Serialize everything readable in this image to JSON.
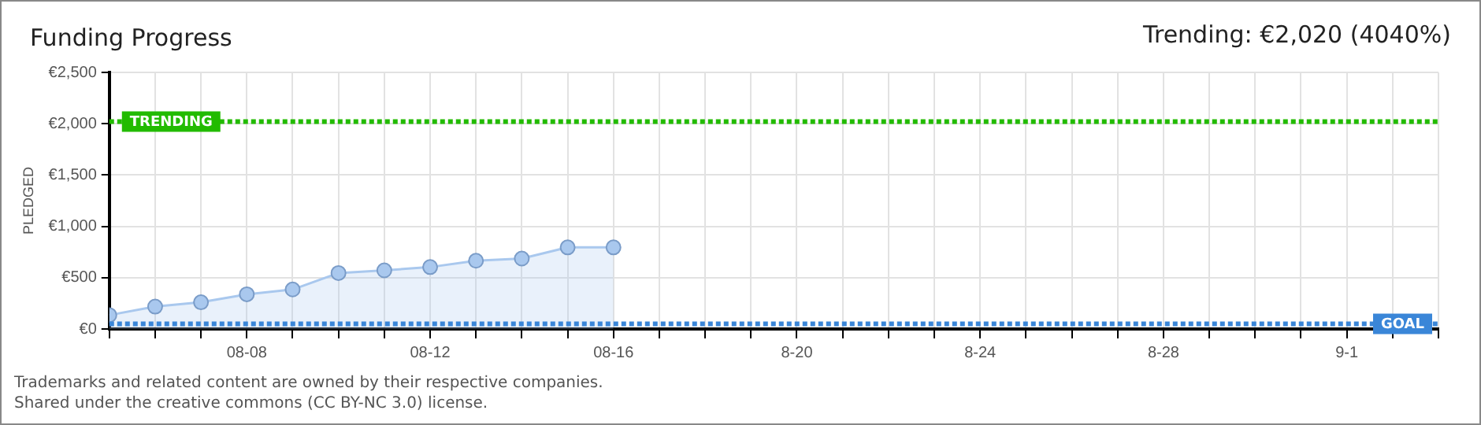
{
  "chart_data": {
    "type": "area",
    "title": "Funding Progress",
    "subtitle": "Trending: €2,020 (4040%)",
    "ylabel": "PLEDGED",
    "x": [
      "--08-05",
      "--08-06",
      "--08-07",
      "--08-08",
      "--08-09",
      "--08-10",
      "--08-11",
      "--08-12",
      "--08-13",
      "--08-14",
      "--08-15",
      "--08-16"
    ],
    "series": [
      {
        "color": "#a9c8ee",
        "values": [
          135,
          218,
          260,
          338,
          385,
          545,
          571,
          603,
          665,
          686,
          795,
          795
        ]
      }
    ],
    "xlim": [
      "--08-05",
      "--09-03"
    ],
    "xticks": [
      {
        "value": "--08-05",
        "label": null
      },
      {
        "value": "--08-06",
        "label": null
      },
      {
        "value": "--08-07",
        "label": null
      },
      {
        "value": "--08-08",
        "label": "08-08"
      },
      {
        "value": "--08-09",
        "label": null
      },
      {
        "value": "--08-10",
        "label": null
      },
      {
        "value": "--08-11",
        "label": null
      },
      {
        "value": "--08-12",
        "label": "08-12"
      },
      {
        "value": "--08-13",
        "label": null
      },
      {
        "value": "--08-14",
        "label": null
      },
      {
        "value": "--08-15",
        "label": null
      },
      {
        "value": "--08-16",
        "label": "08-16"
      },
      {
        "value": "--08-17",
        "label": null
      },
      {
        "value": "--08-18",
        "label": null
      },
      {
        "value": "--08-19",
        "label": null
      },
      {
        "value": "--08-20",
        "label": "8-20"
      },
      {
        "value": "--08-21",
        "label": null
      },
      {
        "value": "--08-22",
        "label": null
      },
      {
        "value": "--08-23",
        "label": null
      },
      {
        "value": "--08-24",
        "label": "8-24"
      },
      {
        "value": "--08-25",
        "label": null
      },
      {
        "value": "--08-26",
        "label": null
      },
      {
        "value": "--08-27",
        "label": null
      },
      {
        "value": "--08-28",
        "label": "8-28"
      },
      {
        "value": "--08-29",
        "label": null
      },
      {
        "value": "--08-30",
        "label": null
      },
      {
        "value": "--08-31",
        "label": null
      },
      {
        "value": "--09-01",
        "label": "9-1"
      },
      {
        "value": "--09-02",
        "label": null
      },
      {
        "value": "--09-03",
        "label": null
      }
    ],
    "ylim": [
      0,
      2500
    ],
    "yticks": [
      {
        "value": 0,
        "label": "€0"
      },
      {
        "value": 500,
        "label": "€500"
      },
      {
        "value": 1000,
        "label": "€1,000"
      },
      {
        "value": 1500,
        "label": "€1,500"
      },
      {
        "value": 2000,
        "label": "€2,000"
      },
      {
        "value": 2500,
        "label": "€2,500"
      }
    ],
    "ref_lines": [
      {
        "axis": "y",
        "value": 2020,
        "label": "TRENDING",
        "color": "#22bb00",
        "line_style": "dotted"
      },
      {
        "axis": "y",
        "value": 50,
        "label": "GOAL",
        "color": "#3a86d8",
        "line_style": "dotted"
      }
    ],
    "annotations": [
      "Trademarks and related content are owned by their respective companies.",
      "Shared under the creative commons (CC BY-NC 3.0) license."
    ],
    "grid": true,
    "marker": "circle",
    "line_style": "solid",
    "legend": false
  }
}
